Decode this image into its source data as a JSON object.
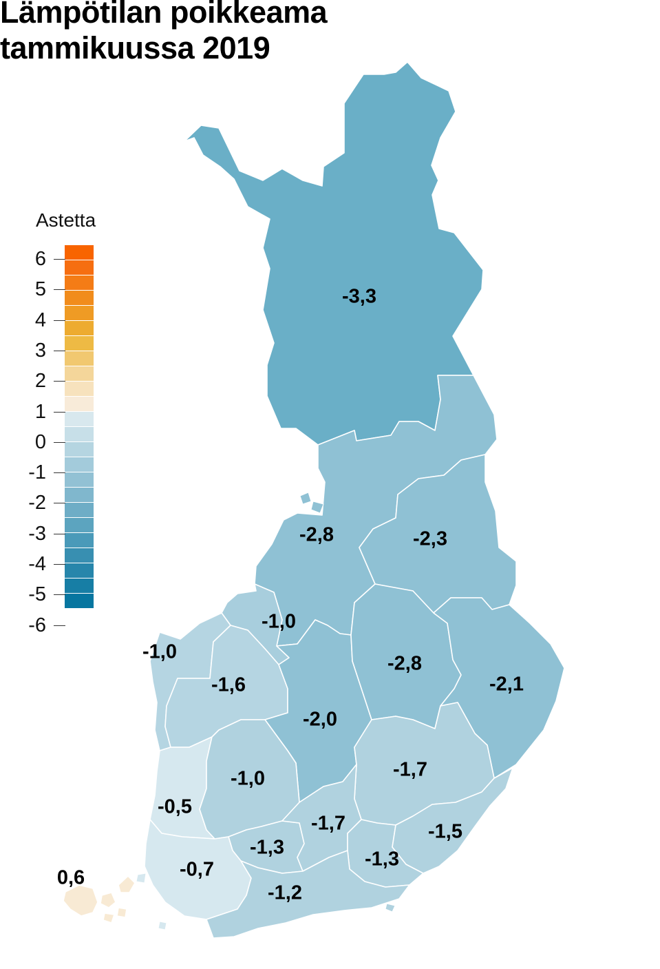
{
  "title_lines": [
    "Lämpötilan poikkeama",
    "tammikuussa 2019"
  ],
  "legend": {
    "title": "Astetta",
    "ticks": [
      "6",
      "5",
      "4",
      "3",
      "2",
      "1",
      "0",
      "-1",
      "-2",
      "-3",
      "-4",
      "-5",
      "-6"
    ],
    "colors": [
      "#f86400",
      "#f66e11",
      "#f47c16",
      "#f18c1c",
      "#ef9b24",
      "#edab30",
      "#eeba44",
      "#f1c870",
      "#f4d69a",
      "#f7e2bd",
      "#f8ebd9",
      "#d8e8ee",
      "#c7dfe8",
      "#b5d5e1",
      "#a3cbdb",
      "#92c1d4",
      "#80b7cd",
      "#6eadc6",
      "#5ca4bf",
      "#4a9ab9",
      "#388fb1",
      "#2786ab",
      "#177ea5",
      "#0776a0"
    ]
  },
  "regions": [
    {
      "id": "lappi",
      "value": "-3,3",
      "color": "#6aafc7"
    },
    {
      "id": "pohjois-pohjanmaa",
      "value": "-2,8",
      "color": "#8fc1d4"
    },
    {
      "id": "kainuu",
      "value": "-2,3",
      "color": "#8fc1d4"
    },
    {
      "id": "keski-pohjanmaa",
      "value": "-1,0",
      "color": "#a8cedd"
    },
    {
      "id": "pohjanmaa",
      "value": "-1,0",
      "color": "#b5d5e2"
    },
    {
      "id": "etela-pohjanmaa",
      "value": "-1,6",
      "color": "#b5d5e2"
    },
    {
      "id": "keski-suomi",
      "value": "-2,0",
      "color": "#8fc1d4"
    },
    {
      "id": "pohjois-savo",
      "value": "-2,8",
      "color": "#8fc1d4"
    },
    {
      "id": "pohjois-karjala",
      "value": "-2,1",
      "color": "#8fc1d4"
    },
    {
      "id": "etela-savo",
      "value": "-1,7",
      "color": "#b0d2df"
    },
    {
      "id": "satakunta",
      "value": "-0,5",
      "color": "#d6e8ef"
    },
    {
      "id": "pirkanmaa",
      "value": "-1,0",
      "color": "#b0d2df"
    },
    {
      "id": "kanta-hame",
      "value": "-1,3",
      "color": "#b0d2df"
    },
    {
      "id": "paijat-hame",
      "value": "-1,7",
      "color": "#b0d2df"
    },
    {
      "id": "kymenlaakso",
      "value": "-1,3",
      "color": "#b0d2df"
    },
    {
      "id": "etela-karjala",
      "value": "-1,5",
      "color": "#b0d2df"
    },
    {
      "id": "varsinais-suomi",
      "value": "-0,7",
      "color": "#d6e8ef"
    },
    {
      "id": "uusimaa",
      "value": "-1,2",
      "color": "#b0d2df"
    },
    {
      "id": "ahvenanmaa",
      "value": "0,6",
      "color": "#f8ead4"
    }
  ]
}
